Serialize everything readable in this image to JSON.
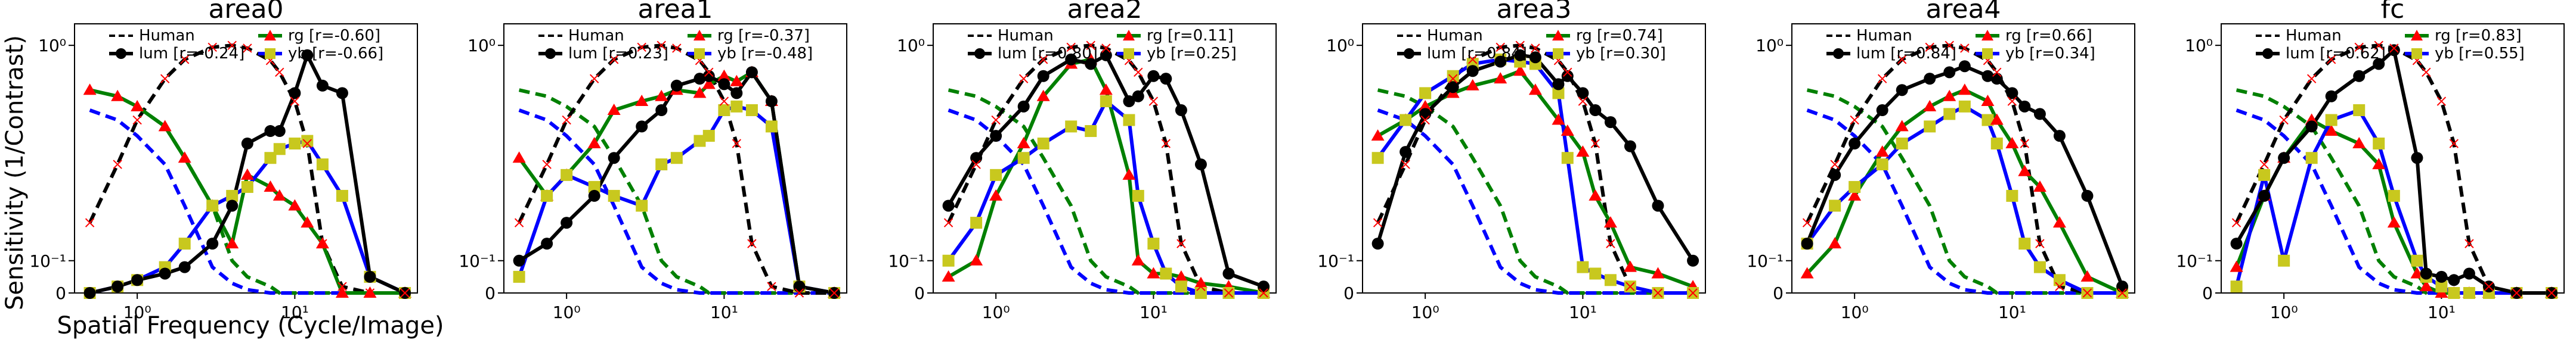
{
  "figure": {
    "ylabel": "Sensitivity (1/Contrast)",
    "xlabel": "Spatial Frequency (Cycle/Image)"
  },
  "colors": {
    "human": "#000000",
    "lum": "#000000",
    "rg": "#008000",
    "yb": "#0000ff",
    "rg_marker": "#ff0000",
    "yb_marker": "#c8c81e",
    "human_marker": "#ff0000"
  },
  "chart_data": [
    {
      "type": "line",
      "title": "area0",
      "legend": [
        "Human",
        "lum [r=-0.24]",
        "rg    [r=-0.60]",
        "yb    [r=-0.66]"
      ],
      "x": [
        0.5,
        0.75,
        1,
        1.5,
        2,
        3,
        4,
        5,
        7,
        8,
        10,
        12,
        15,
        20,
        30,
        50
      ],
      "series": [
        {
          "name": "Human",
          "values": [
            0.15,
            0.28,
            0.45,
            0.7,
            0.86,
            0.98,
            1.0,
            0.97,
            0.85,
            0.75,
            0.55,
            0.35,
            0.12,
            0.02,
            0.0,
            0.0
          ]
        },
        {
          "name": "lum",
          "values": [
            0.0,
            0.02,
            0.04,
            0.06,
            0.08,
            0.12,
            0.18,
            0.35,
            0.4,
            0.4,
            0.6,
            0.9,
            0.65,
            0.6,
            0.05,
            0.0
          ]
        },
        {
          "name": "rg",
          "values": [
            0.62,
            0.58,
            0.52,
            0.42,
            0.3,
            0.18,
            0.1,
            0.05,
            0.02,
            0.0,
            0.0,
            0.0,
            0.0,
            0.0,
            0.0,
            0.0
          ]
        },
        {
          "name": "yb",
          "values": [
            0.0,
            0.02,
            0.04,
            0.08,
            0.12,
            0.18,
            0.2,
            0.22,
            0.3,
            0.33,
            0.35,
            0.36,
            0.28,
            0.2,
            0.05,
            0.0
          ]
        }
      ],
      "series_dashed": [
        "Human",
        "rg_dashed",
        "yb_dashed"
      ],
      "ylim": [
        0,
        1.0
      ],
      "xlim": [
        0.5,
        60
      ]
    }
  ]
}
